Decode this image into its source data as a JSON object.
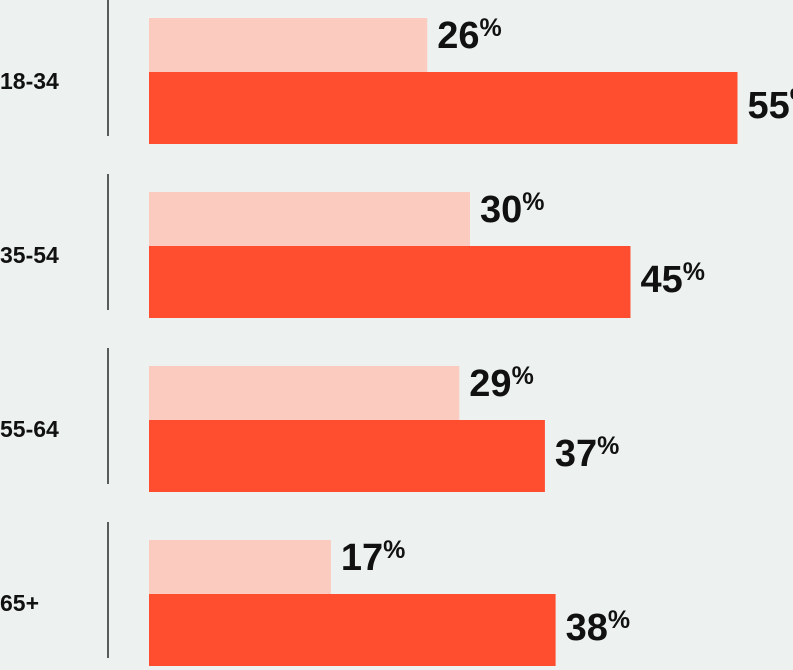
{
  "chart_data": {
    "type": "bar",
    "orientation": "horizontal",
    "grouped": true,
    "categories": [
      "18-34",
      "35-54",
      "55-64",
      "65+"
    ],
    "series": [
      {
        "color": "#fbcbbf",
        "values": [
          26,
          30,
          29,
          17
        ]
      },
      {
        "color": "#ff4d30",
        "values": [
          55,
          45,
          37,
          38
        ]
      }
    ],
    "value_suffix": "%",
    "xlim": [
      0,
      100
    ],
    "grid": false,
    "legend": "none"
  }
}
